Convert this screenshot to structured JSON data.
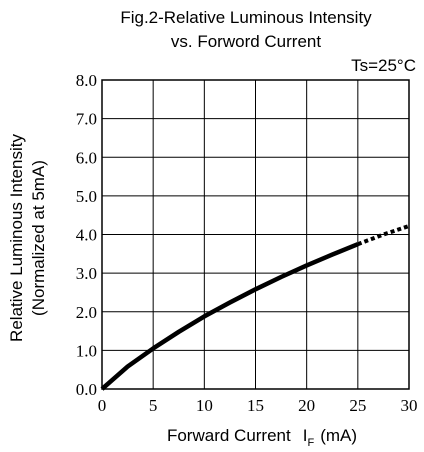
{
  "chart_data": {
    "type": "line",
    "title_line1": "Fig.2-Relative Luminous Intensity",
    "title_line2": "vs. Forword Current",
    "condition": "Ts=25°C",
    "xlabel_main": "Forward Current",
    "xlabel_symbol": "I",
    "xlabel_subscript": "F",
    "xlabel_unit": "(mA)",
    "ylabel_line1": "Relative Luminous Intensity",
    "ylabel_line2": "(Normalized at 5mA)",
    "xlim": [
      0,
      30
    ],
    "ylim": [
      0,
      8
    ],
    "x_ticks": [
      "0",
      "5",
      "10",
      "15",
      "20",
      "25",
      "30"
    ],
    "y_ticks": [
      "0.0",
      "1.0",
      "2.0",
      "3.0",
      "4.0",
      "5.0",
      "6.0",
      "7.0",
      "8.0"
    ],
    "grid": true,
    "series": [
      {
        "style": "solid",
        "x": [
          0,
          2.5,
          5,
          7.5,
          10,
          12.5,
          15,
          17.5,
          20,
          22.5,
          25
        ],
        "y": [
          0.0,
          0.58,
          1.05,
          1.48,
          1.88,
          2.24,
          2.58,
          2.9,
          3.2,
          3.48,
          3.75
        ]
      },
      {
        "style": "dotted",
        "x": [
          25,
          27.5,
          30
        ],
        "y": [
          3.75,
          4.0,
          4.22
        ]
      }
    ]
  }
}
